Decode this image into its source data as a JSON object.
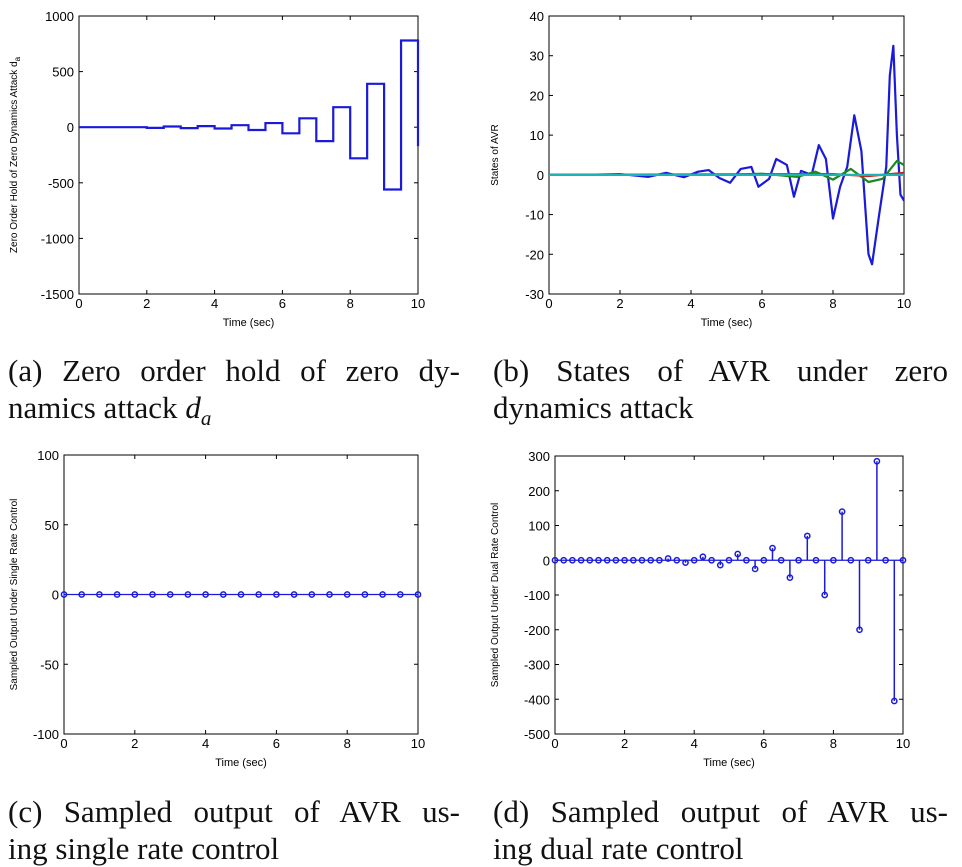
{
  "captions": {
    "a": {
      "line1": "(a) Zero order hold of zero dy-",
      "line2_text": "namics attack ",
      "line2_math": "d",
      "line2_sub": "a"
    },
    "b": {
      "line1": "(b) States of AVR under zero",
      "line2": "dynamics attack"
    },
    "c": {
      "line1": "(c) Sampled output of AVR us-",
      "line2": "ing single rate control"
    },
    "d": {
      "line1": "(d) Sampled output of AVR us-",
      "line2": "ing dual rate control"
    }
  },
  "chart_data": [
    {
      "id": "a",
      "type": "line",
      "style": "stairs",
      "xlabel": "Time (sec)",
      "ylabel": "Zero Order Hold of Zero Dynamics Attack d",
      "ylabel_sub": "a",
      "xlim": [
        0,
        10
      ],
      "ylim": [
        -1500,
        1000
      ],
      "xticks": [
        0,
        2,
        4,
        6,
        8,
        10
      ],
      "yticks": [
        -1500,
        -1000,
        -500,
        0,
        500,
        1000
      ],
      "grid": false,
      "color": "#1a1adb",
      "series": [
        {
          "x": [
            0,
            0.5,
            1.0,
            1.5,
            2.0,
            2.5,
            3.0,
            3.5,
            4.0,
            4.5,
            5.0,
            5.5,
            6.0,
            6.5,
            7.0,
            7.5,
            8.0,
            8.5,
            9.0,
            9.5,
            10.0
          ],
          "values": [
            0,
            0,
            0,
            0,
            -6,
            6,
            -8,
            10,
            -12,
            18,
            -25,
            37,
            -55,
            80,
            -125,
            180,
            -280,
            390,
            -560,
            780,
            -170
          ]
        }
      ]
    },
    {
      "id": "b",
      "type": "line",
      "xlabel": "Time (sec)",
      "ylabel": "States of AVR",
      "xlim": [
        0,
        10
      ],
      "ylim": [
        -30,
        40
      ],
      "xticks": [
        0,
        2,
        4,
        6,
        8,
        10
      ],
      "yticks": [
        -30,
        -20,
        -10,
        0,
        10,
        20,
        30,
        40
      ],
      "grid": false,
      "series": [
        {
          "color": "#1a1adb",
          "x": [
            0,
            1.0,
            2.0,
            2.8,
            3.3,
            3.8,
            4.2,
            4.5,
            4.8,
            5.1,
            5.4,
            5.7,
            5.9,
            6.2,
            6.4,
            6.7,
            6.9,
            7.1,
            7.4,
            7.6,
            7.8,
            8.0,
            8.2,
            8.4,
            8.6,
            8.8,
            9.0,
            9.1,
            9.3,
            9.5,
            9.6,
            9.7,
            9.8,
            9.9,
            10.0
          ],
          "values": [
            0,
            0,
            0.2,
            -0.5,
            0.5,
            -0.6,
            0.8,
            1.2,
            -0.8,
            -2.0,
            1.5,
            2.0,
            -3.0,
            -1.0,
            4.0,
            2.5,
            -5.5,
            1.0,
            0,
            7.5,
            4.0,
            -11.0,
            -3.0,
            2.0,
            15.0,
            6.0,
            -20.0,
            -22.5,
            -10.0,
            2.0,
            25.0,
            32.5,
            10.0,
            -5.0,
            -6.5
          ]
        },
        {
          "color": "#1a8a1a",
          "x": [
            0,
            5.0,
            6.0,
            7.0,
            7.5,
            8.0,
            8.5,
            9.0,
            9.4,
            9.8,
            10.0
          ],
          "values": [
            0,
            0,
            0.3,
            -0.5,
            0.8,
            -1.2,
            1.5,
            -1.8,
            -1.0,
            3.5,
            2.5
          ]
        },
        {
          "color": "#d02020",
          "x": [
            0,
            8.0,
            9.0,
            10.0
          ],
          "values": [
            0,
            0.2,
            -0.3,
            0.5
          ]
        },
        {
          "color": "#20b2b2",
          "x": [
            0,
            10.0
          ],
          "values": [
            0,
            0
          ]
        }
      ]
    },
    {
      "id": "c",
      "type": "scatter",
      "style": "stem",
      "xlabel": "Time (sec)",
      "ylabel": "Sampled Output Under Single Rate Control",
      "xlim": [
        0,
        10
      ],
      "ylim": [
        -100,
        100
      ],
      "xticks": [
        0,
        2,
        4,
        6,
        8,
        10
      ],
      "yticks": [
        -100,
        -50,
        0,
        50,
        100
      ],
      "grid": false,
      "color": "#1a1adb",
      "series": [
        {
          "x": [
            0,
            0.5,
            1.0,
            1.5,
            2.0,
            2.5,
            3.0,
            3.5,
            4.0,
            4.5,
            5.0,
            5.5,
            6.0,
            6.5,
            7.0,
            7.5,
            8.0,
            8.5,
            9.0,
            9.5,
            10.0
          ],
          "values": [
            0,
            0,
            0,
            0,
            0,
            0,
            0,
            0,
            0,
            0,
            0,
            0,
            0,
            0,
            0,
            0,
            0,
            0,
            0,
            0,
            0
          ]
        }
      ]
    },
    {
      "id": "d",
      "type": "scatter",
      "style": "stem",
      "xlabel": "Time (sec)",
      "ylabel": "Sampled Output Under Dual Rate Control",
      "xlim": [
        0,
        10
      ],
      "ylim": [
        -500,
        300
      ],
      "xticks": [
        0,
        2,
        4,
        6,
        8,
        10
      ],
      "yticks": [
        -500,
        -400,
        -300,
        -200,
        -100,
        0,
        100,
        200,
        300
      ],
      "grid": false,
      "color": "#1a1adb",
      "series": [
        {
          "x": [
            0,
            0.25,
            0.5,
            0.75,
            1.0,
            1.25,
            1.5,
            1.75,
            2.0,
            2.25,
            2.5,
            2.75,
            3.0,
            3.25,
            3.5,
            3.75,
            4.0,
            4.25,
            4.5,
            4.75,
            5.0,
            5.25,
            5.5,
            5.75,
            6.0,
            6.25,
            6.5,
            6.75,
            7.0,
            7.25,
            7.5,
            7.75,
            8.0,
            8.25,
            8.5,
            8.75,
            9.0,
            9.25,
            9.5,
            9.75,
            10.0
          ],
          "values": [
            0,
            0,
            0,
            0,
            0,
            0,
            0,
            0,
            0,
            0,
            0,
            0,
            0,
            5,
            0,
            -7,
            0,
            10,
            0,
            -14,
            0,
            18,
            0,
            -25,
            0,
            35,
            0,
            -50,
            0,
            70,
            0,
            -100,
            0,
            140,
            0,
            -200,
            0,
            285,
            0,
            -405,
            0
          ]
        }
      ]
    }
  ]
}
